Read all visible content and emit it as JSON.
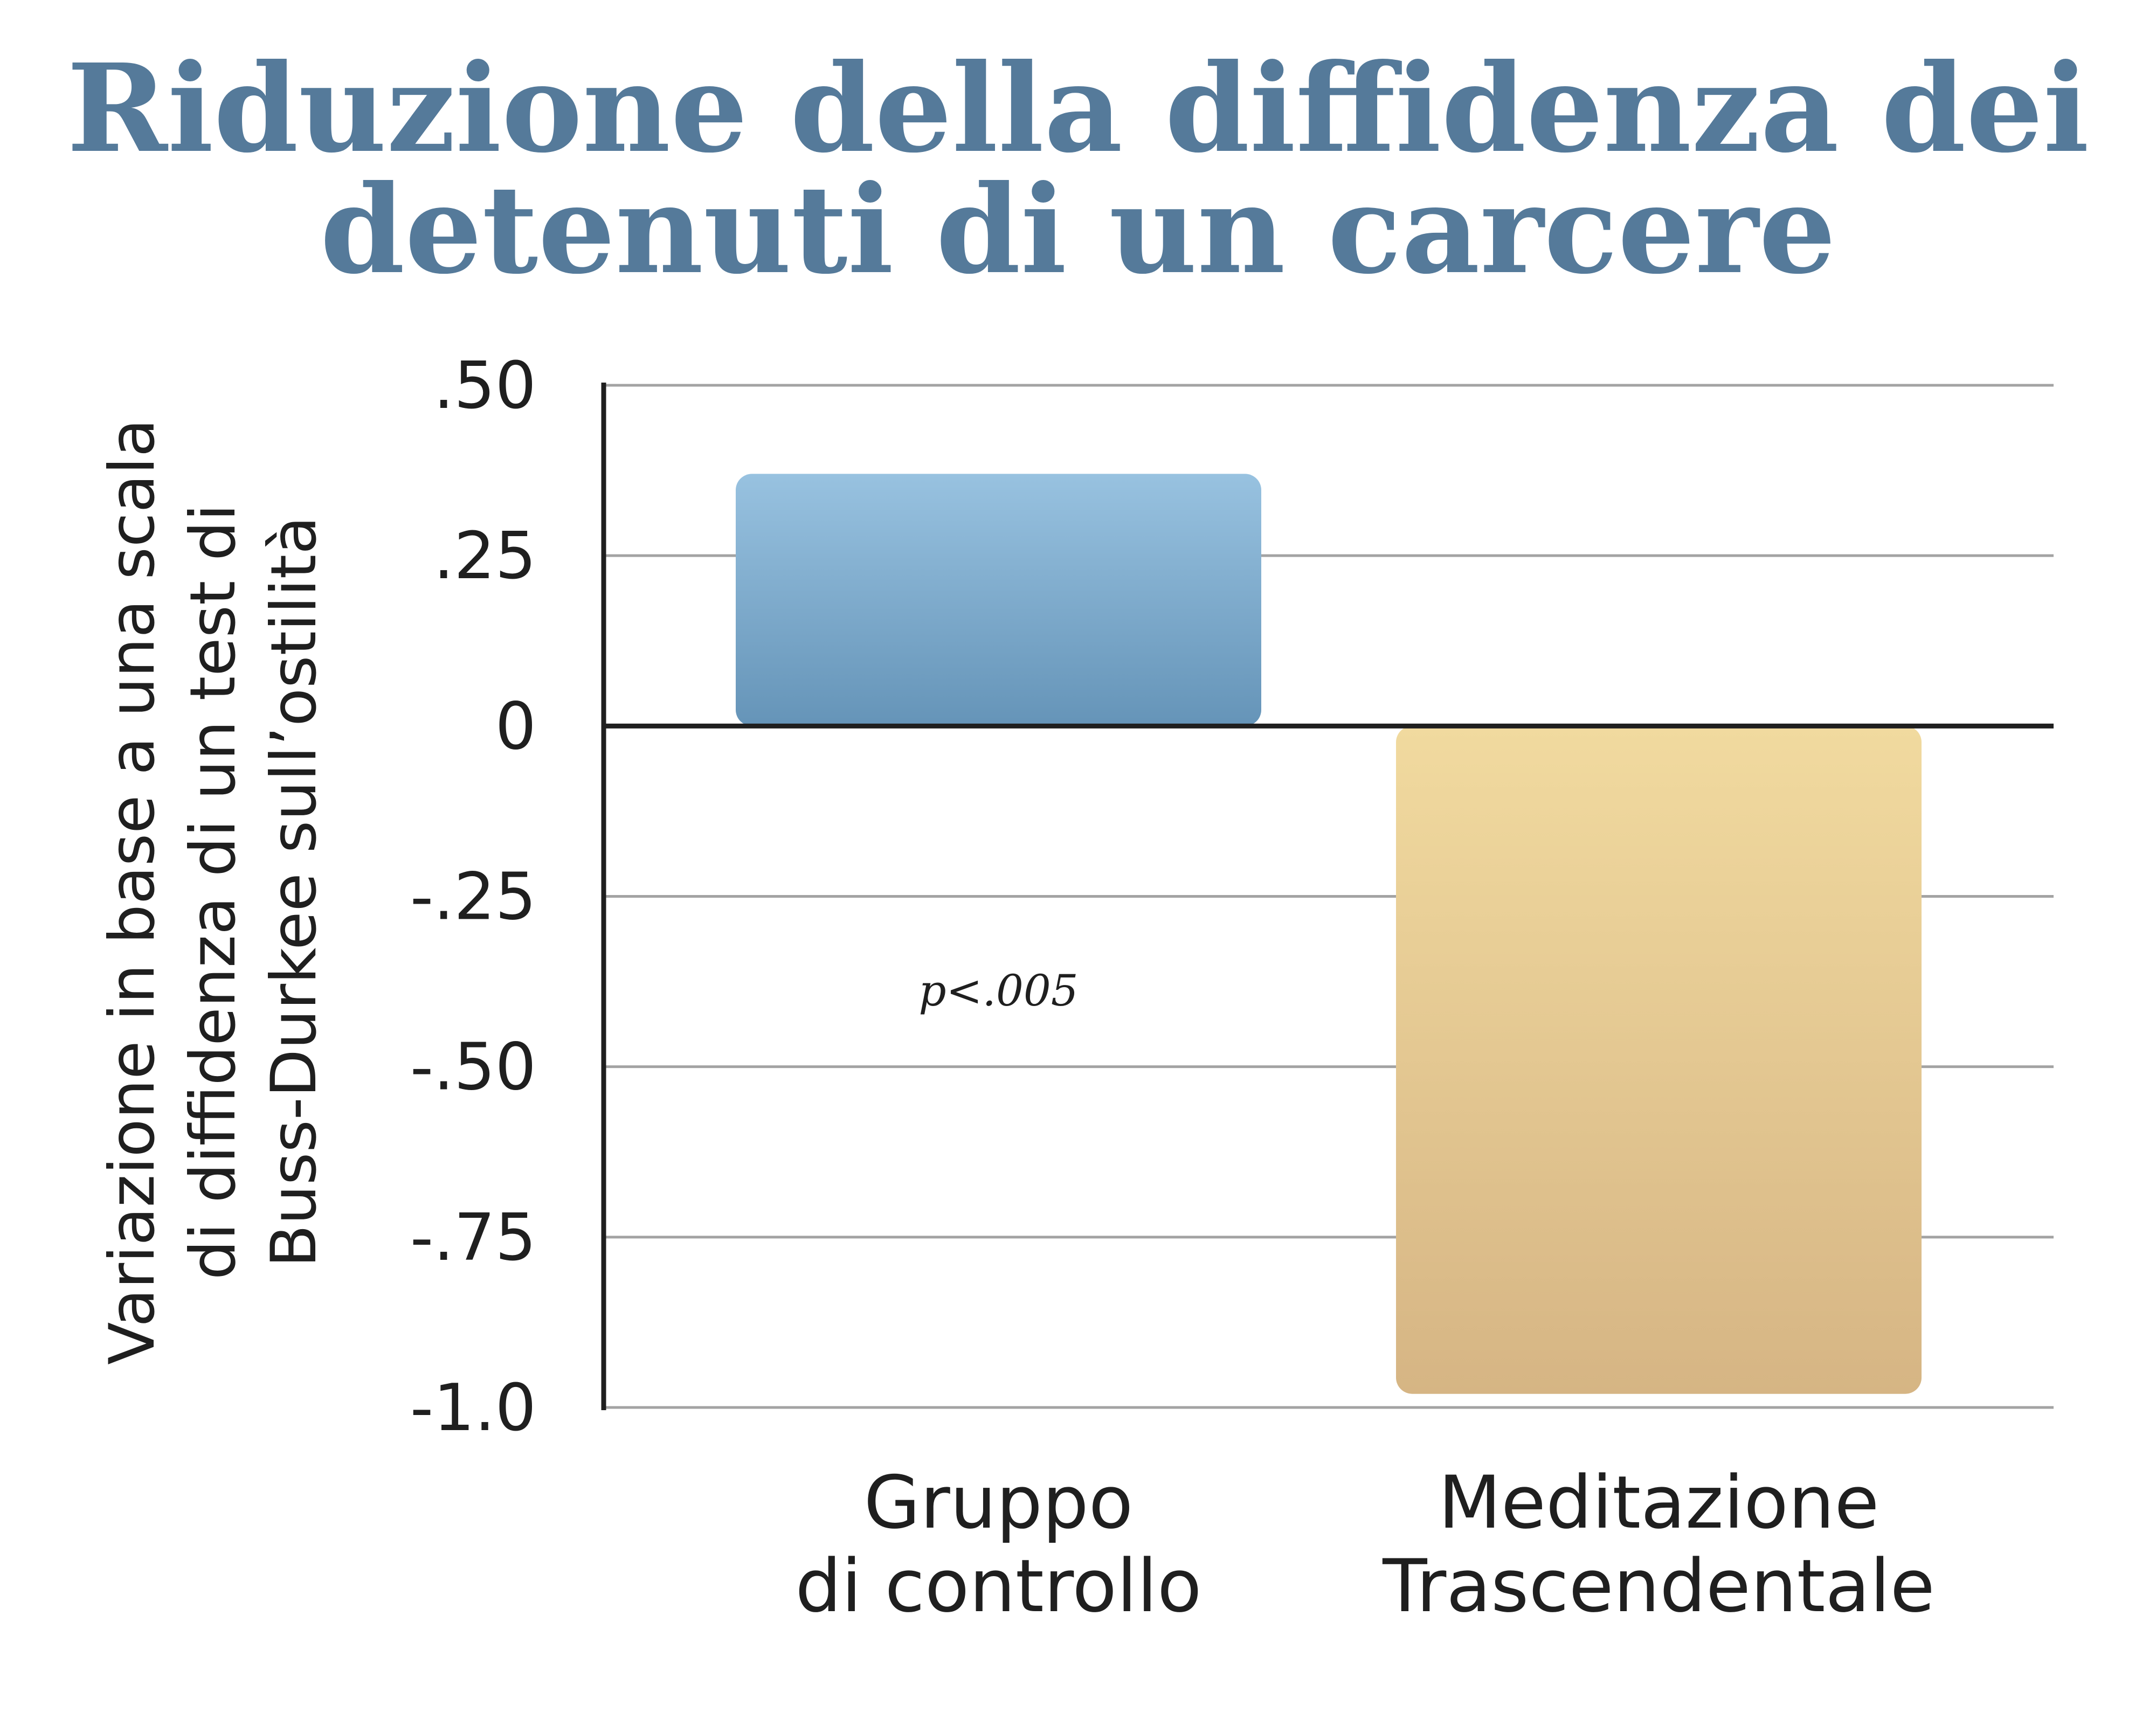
{
  "colors": {
    "title": "#557a9a",
    "grid": "#a3a3a3",
    "axis": "#1f1f1f",
    "bar_control_top": "#98c2e0",
    "bar_control_bottom": "#6594b8",
    "bar_tm_top": "#f1da9f",
    "bar_tm_bottom": "#d6b584"
  },
  "chart_data": {
    "type": "bar",
    "title_lines": [
      "Riduzione della diffidenza dei",
      "detenuti di un carcere"
    ],
    "ylabel_lines": [
      "Variazione in base a una scala",
      "di diffidenza di un test di",
      "Buss-Durkee sull’ostilità"
    ],
    "categories": [
      {
        "lines": [
          "Gruppo",
          "di controllo"
        ]
      },
      {
        "lines": [
          "Meditazione",
          "Trascendentale"
        ]
      }
    ],
    "values": [
      0.37,
      -0.98
    ],
    "yticks": [
      {
        "value": 0.5,
        "label": ".50"
      },
      {
        "value": 0.25,
        "label": ".25"
      },
      {
        "value": 0,
        "label": "0"
      },
      {
        "value": -0.25,
        "label": "-.25"
      },
      {
        "value": -0.5,
        "label": "-.50"
      },
      {
        "value": -0.75,
        "label": "-.75"
      },
      {
        "value": -1.0,
        "label": "-1.0"
      }
    ],
    "ylim": [
      -1.0,
      0.5
    ],
    "grid": true,
    "annotation": "p<.005"
  }
}
